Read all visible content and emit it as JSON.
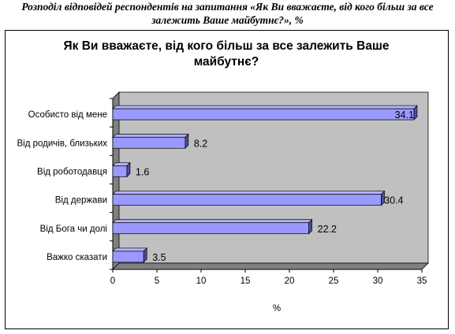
{
  "caption": {
    "line1": "Розподіл відповідей респондентів на запитання «Як Ви вважаєте, від кого більш за все",
    "line2": "залежить Ваше майбутнє?», %"
  },
  "chart_data": {
    "type": "bar",
    "orientation": "horizontal",
    "title_line1": "Як Ви вважаєте, від кого більш за все залежить Ваше",
    "title_line2": "майбутнє?",
    "categories": [
      "Особисто від мене",
      "Від родичів, близьких",
      "Від роботодавця",
      "Від держави",
      "Від Бога чи долі",
      "Важко сказати"
    ],
    "values": [
      34.1,
      8.2,
      1.6,
      30.4,
      22.2,
      3.5
    ],
    "value_labels": [
      "34.1",
      "8.2",
      "1.6",
      "30.4",
      "22.2",
      "3.5"
    ],
    "xlabel": "%",
    "xlim": [
      0,
      35
    ],
    "xticks": [
      "0",
      "5",
      "10",
      "15",
      "20",
      "25",
      "30",
      "35"
    ],
    "grid": false,
    "legend": "none",
    "colors": {
      "bar": "#9999ff",
      "bar_side": "#4d4d99",
      "plot_bg": "#c0c0c0",
      "plot_wall": "#808080"
    }
  }
}
